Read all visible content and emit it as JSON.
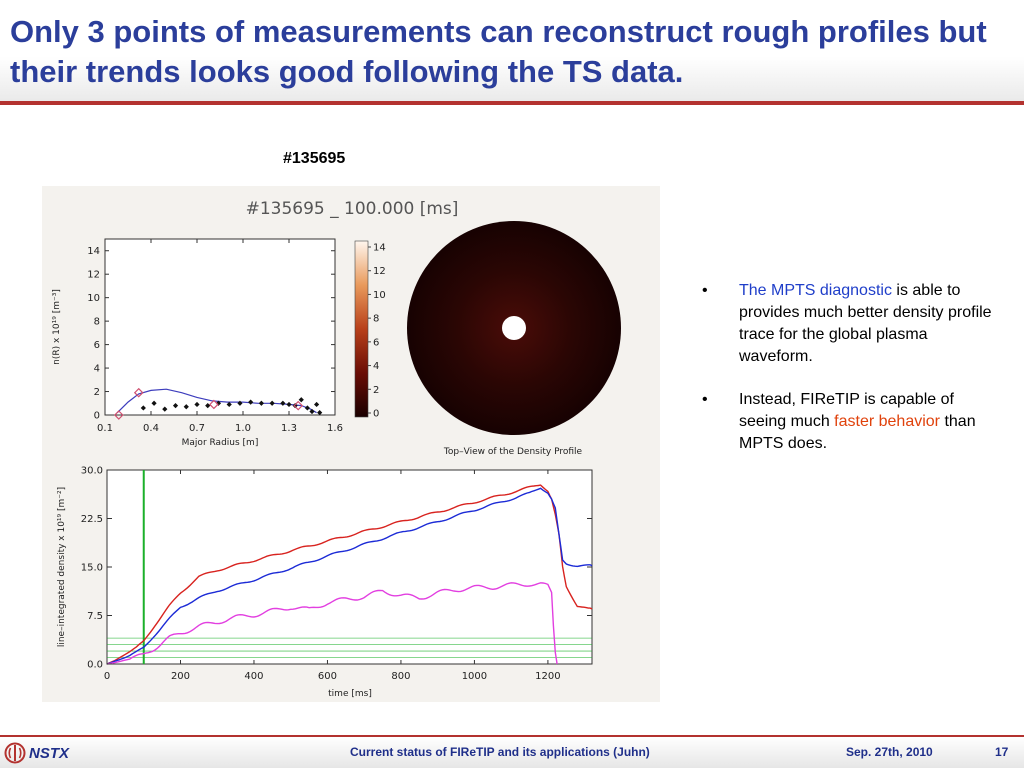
{
  "slide": {
    "title": "Only 3 points of measurements can reconstruct rough profiles but their trends looks good following the TS data.",
    "shot_label": "#135695"
  },
  "figure": {
    "header": "#135695 _ 100.000 [ms]",
    "image_caption": "Top–View of the Density Profile",
    "colorbar_ticks": [
      "14",
      "12",
      "10",
      "8",
      "6",
      "4",
      "2",
      "0"
    ],
    "colors": {
      "red": "#d8231f",
      "blue": "#1c2bd6",
      "magenta": "#e23fe0",
      "green": "#1bb02a",
      "frame": "#f4f2ee"
    }
  },
  "chart_data": [
    {
      "type": "scatter",
      "title": "",
      "xlabel": "Major Radius [m]",
      "ylabel": "n(R) x 10¹⁹ [m⁻³]",
      "xlim": [
        0.1,
        1.6
      ],
      "ylim": [
        0,
        15
      ],
      "xticks": [
        "0.1",
        "0.4",
        "0.7",
        "1.0",
        "1.3",
        "1.6"
      ],
      "yticks": [
        "0",
        "2",
        "4",
        "6",
        "8",
        "10",
        "12",
        "14"
      ],
      "series": [
        {
          "kind": "points",
          "x": [
            0.35,
            0.42,
            0.49,
            0.56,
            0.63,
            0.7,
            0.77,
            0.84,
            0.91,
            0.98,
            1.05,
            1.12,
            1.19,
            1.26,
            1.3,
            1.34,
            1.38,
            1.42,
            1.45,
            1.48,
            1.5
          ],
          "y": [
            0.6,
            1.0,
            0.5,
            0.8,
            0.7,
            0.9,
            0.8,
            1.0,
            0.9,
            1.0,
            1.1,
            1.0,
            1.0,
            1.0,
            0.9,
            0.8,
            1.3,
            0.6,
            0.3,
            0.9,
            0.2
          ]
        },
        {
          "kind": "diamonds",
          "x": [
            0.19,
            0.32,
            0.81,
            1.36
          ],
          "y": [
            0.0,
            1.9,
            0.9,
            0.8
          ]
        },
        {
          "kind": "curve",
          "x": [
            0.18,
            0.25,
            0.32,
            0.4,
            0.5,
            0.6,
            0.7,
            0.8,
            0.9,
            1.0,
            1.1,
            1.2,
            1.3,
            1.38,
            1.44,
            1.48
          ],
          "y": [
            0.2,
            1.1,
            1.8,
            2.1,
            2.2,
            1.9,
            1.5,
            1.2,
            1.1,
            1.1,
            1.0,
            1.0,
            0.9,
            0.8,
            0.5,
            0.2
          ]
        }
      ]
    },
    {
      "type": "line",
      "title": "",
      "xlabel": "time [ms]",
      "ylabel": "line–integrated density x 10¹⁹ [m⁻²]",
      "xlim": [
        0,
        1320
      ],
      "ylim": [
        0,
        30
      ],
      "xticks": [
        "0",
        "200",
        "400",
        "600",
        "800",
        "1000",
        "1200"
      ],
      "yticks": [
        "0.0",
        "7.5",
        "15.0",
        "22.5",
        "30.0"
      ],
      "vline_x": 100,
      "hlines_y": [
        1.0,
        2.0,
        3.0,
        4.0
      ],
      "series": [
        {
          "name": "",
          "color": "red",
          "x": [
            0,
            20,
            50,
            80,
            100,
            130,
            170,
            200,
            250,
            300,
            400,
            500,
            600,
            700,
            800,
            900,
            1000,
            1100,
            1150,
            1180,
            1200,
            1210,
            1220,
            1230,
            1240,
            1250,
            1280,
            1310,
            1320
          ],
          "y": [
            0,
            0.5,
            1.5,
            2.5,
            3.5,
            6,
            9,
            11,
            13.5,
            14.5,
            16,
            17.5,
            19,
            20.5,
            22,
            23.5,
            25,
            26.5,
            27.3,
            27.8,
            26.8,
            25.5,
            23,
            20,
            15,
            12,
            9,
            8.5,
            8.5
          ]
        },
        {
          "name": "",
          "color": "blue",
          "x": [
            0,
            20,
            50,
            80,
            100,
            130,
            170,
            200,
            250,
            300,
            400,
            500,
            600,
            700,
            800,
            900,
            1000,
            1100,
            1150,
            1180,
            1200,
            1210,
            1220,
            1230,
            1240,
            1250,
            1280,
            1310,
            1320
          ],
          "y": [
            0,
            0.4,
            1.0,
            1.8,
            2.5,
            4.5,
            7,
            8.8,
            10.2,
            11.3,
            13,
            14.8,
            16.7,
            18.5,
            20.3,
            22,
            23.8,
            25.5,
            26.4,
            27.3,
            26.5,
            25.5,
            24,
            20,
            16,
            15.5,
            15.2,
            15.2,
            15.2
          ]
        },
        {
          "name": "",
          "color": "magenta",
          "x": [
            0,
            20,
            50,
            80,
            100,
            130,
            170,
            200,
            250,
            300,
            350,
            400,
            450,
            500,
            550,
            600,
            650,
            700,
            750,
            800,
            850,
            900,
            950,
            1000,
            1050,
            1100,
            1150,
            1180,
            1200,
            1210,
            1215,
            1220,
            1225
          ],
          "y": [
            0,
            0.2,
            0.6,
            1.0,
            1.4,
            2.5,
            4.0,
            4.8,
            5.8,
            6.5,
            7.2,
            7.6,
            8.2,
            8.8,
            8.4,
            9.5,
            10.0,
            10.4,
            11.3,
            10.6,
            10.2,
            11.0,
            11.5,
            11.8,
            11.9,
            12.2,
            12.4,
            12.3,
            12.0,
            11.0,
            6.0,
            2.0,
            0.0
          ]
        }
      ]
    }
  ],
  "bullets": [
    {
      "highlight": "The MPTS diagnostic",
      "text": " is able to provides much better density profile trace for the global plasma waveform."
    },
    {
      "lead": "Instead, FIReTIP is capable of seeing much ",
      "highlight": "faster behavior",
      "tail": " than MPTS does."
    }
  ],
  "footer": {
    "logo_text": "NSTX",
    "center_text": "Current status of FIReTIP and its applications (Juhn)",
    "date": "Sep. 27th, 2010",
    "page": "17"
  }
}
